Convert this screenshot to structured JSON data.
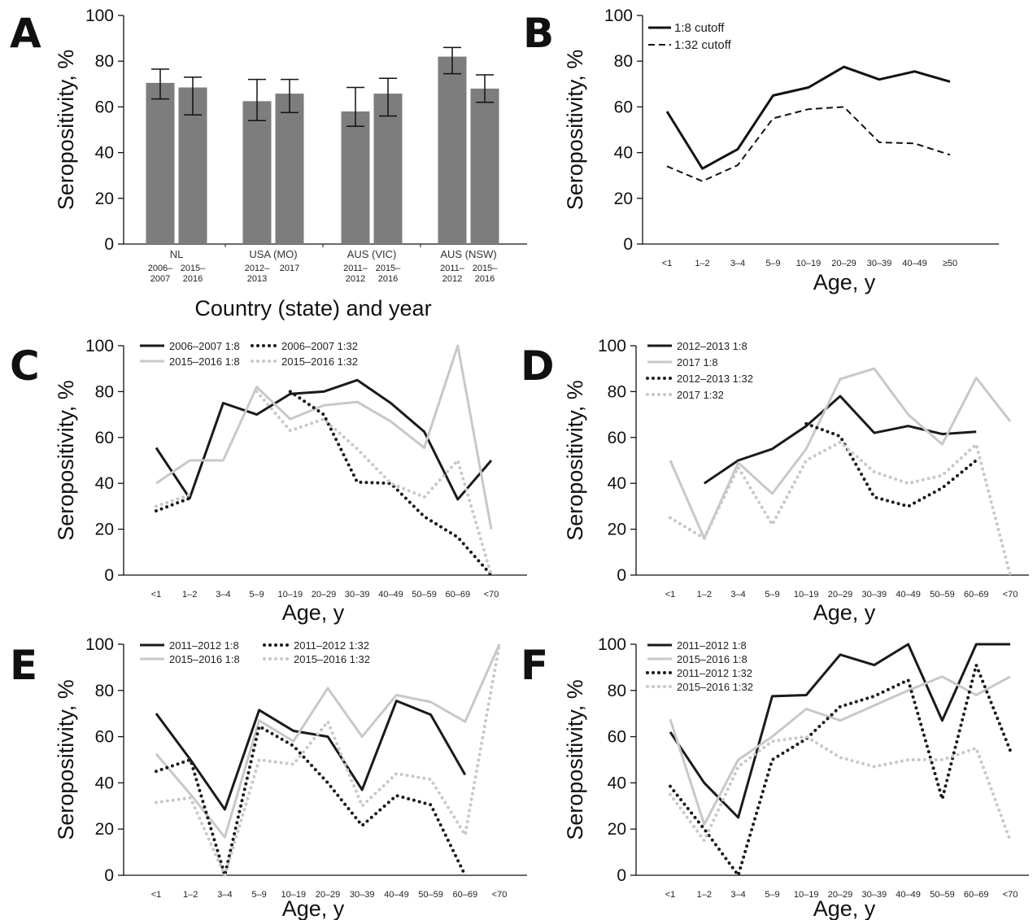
{
  "figure": {
    "panel_letters": [
      "A",
      "B",
      "C",
      "D",
      "E",
      "F"
    ]
  },
  "chart_data": [
    {
      "panel": "A",
      "type": "bar",
      "ylabel": "Seropositivity, %",
      "xlabel": "Country (state) and year",
      "ylim": [
        0,
        100
      ],
      "yticks": [
        "0",
        "20",
        "40",
        "60",
        "80",
        "100"
      ],
      "bar_color": "#7d7d7d",
      "groups": [
        {
          "label": "NL",
          "years": [
            "2006–\n2007",
            "2015–\n2016"
          ],
          "values": [
            70.5,
            68.5
          ],
          "err_low": [
            63.5,
            56.5
          ],
          "err_high": [
            76.5,
            73
          ]
        },
        {
          "label": "USA (MO)",
          "years": [
            "2012–\n2013",
            "2017"
          ],
          "values": [
            62.5,
            65.8
          ],
          "err_low": [
            54,
            57.5
          ],
          "err_high": [
            72,
            72
          ]
        },
        {
          "label": "AUS (VIC)",
          "years": [
            "2011–\n2012",
            "2015–\n2016"
          ],
          "values": [
            58,
            65.8
          ],
          "err_low": [
            51.5,
            56
          ],
          "err_high": [
            68.5,
            72.5
          ]
        },
        {
          "label": "AUS (NSW)",
          "years": [
            "2011–\n2012",
            "2015–\n2016"
          ],
          "values": [
            82,
            68
          ],
          "err_low": [
            74.5,
            62
          ],
          "err_high": [
            86,
            74
          ]
        }
      ]
    },
    {
      "panel": "B",
      "type": "line",
      "ylabel": "Seropositivity, %",
      "xlabel": "Age, y",
      "ylim": [
        0,
        100
      ],
      "yticks": [
        "0",
        "20",
        "40",
        "60",
        "80",
        "100"
      ],
      "categories": [
        "<1",
        "1–2",
        "3–4",
        "5–9",
        "10–19",
        "20–29",
        "30–39",
        "40–49",
        "≥50"
      ],
      "series": [
        {
          "name": "1:8 cutoff",
          "color": "#111111",
          "dash": "solid",
          "values": [
            58,
            33,
            41.5,
            65,
            68.5,
            77.5,
            72,
            75.5,
            71
          ]
        },
        {
          "name": "1:32 cutoff",
          "color": "#111111",
          "dash": "dashed",
          "values": [
            34,
            27.5,
            34.5,
            55,
            59,
            60,
            44.5,
            44,
            39
          ]
        }
      ]
    },
    {
      "panel": "C",
      "type": "line",
      "ylabel": "Seropositivity, %",
      "xlabel": "Age, y",
      "ylim": [
        0,
        100
      ],
      "yticks": [
        "0",
        "20",
        "40",
        "60",
        "80",
        "100"
      ],
      "categories": [
        "<1",
        "1–2",
        "3–4",
        "5–9",
        "10–19",
        "20–29",
        "30–39",
        "40–49",
        "50–59",
        "60–69",
        "<70"
      ],
      "series": [
        {
          "name": "2006–2007 1:8",
          "color": "#1a1a1a",
          "dash": "solid",
          "values": [
            55.5,
            33.5,
            75,
            70,
            79,
            80,
            85,
            75,
            62.5,
            33,
            50
          ]
        },
        {
          "name": "2015–2016 1:8",
          "color": "#c8c8c8",
          "dash": "solid",
          "values": [
            40,
            50,
            50,
            82,
            68,
            74,
            75.5,
            67,
            55.5,
            100,
            20
          ]
        },
        {
          "name": "2006–2007 1:32",
          "color": "#1a1a1a",
          "dash": "dotted",
          "values": [
            28,
            33.5,
            null,
            null,
            80,
            70,
            40.5,
            40,
            25.5,
            16.5,
            0
          ]
        },
        {
          "name": "2015–2016 1:32",
          "color": "#c8c8c8",
          "dash": "dotted",
          "values": [
            30,
            35,
            null,
            80,
            63,
            68,
            55,
            40,
            34,
            50,
            0
          ]
        }
      ]
    },
    {
      "panel": "D",
      "type": "line",
      "ylabel": "Seropositivity, %",
      "xlabel": "Age, y",
      "ylim": [
        0,
        100
      ],
      "yticks": [
        "0",
        "20",
        "40",
        "60",
        "80",
        "100"
      ],
      "categories": [
        "<1",
        "1–2",
        "3–4",
        "5–9",
        "10–19",
        "20–29",
        "30–39",
        "40–49",
        "50–59",
        "60–69",
        "<70"
      ],
      "series": [
        {
          "name": "2012–2013 1:8",
          "color": "#1a1a1a",
          "dash": "solid",
          "values": [
            null,
            40,
            50,
            55,
            65,
            78,
            62,
            65,
            61.5,
            62.5,
            null
          ]
        },
        {
          "name": "2017 1:8",
          "color": "#c8c8c8",
          "dash": "solid",
          "values": [
            50,
            16,
            49,
            35.5,
            55,
            85.5,
            90,
            70,
            57,
            86,
            67
          ]
        },
        {
          "name": "2012–2013 1:32",
          "color": "#1a1a1a",
          "dash": "dotted",
          "values": [
            null,
            null,
            null,
            null,
            66,
            60.5,
            34,
            30,
            38,
            50,
            null
          ]
        },
        {
          "name": "2017 1:32",
          "color": "#c8c8c8",
          "dash": "dotted",
          "values": [
            25,
            16,
            47,
            22,
            50,
            58,
            45,
            40,
            43.5,
            57,
            0
          ]
        }
      ]
    },
    {
      "panel": "E",
      "type": "line",
      "ylabel": "Seropositivity, %",
      "xlabel": "Age, y",
      "ylim": [
        0,
        100
      ],
      "yticks": [
        "0",
        "20",
        "40",
        "60",
        "80",
        "100"
      ],
      "categories": [
        "<1",
        "1–2",
        "3–4",
        "5–9",
        "10–19",
        "20–29",
        "30–39",
        "40–49",
        "50–59",
        "60–69",
        "<70"
      ],
      "series": [
        {
          "name": "2011–2012 1:8",
          "color": "#1a1a1a",
          "dash": "solid",
          "values": [
            70,
            50,
            28.5,
            71.5,
            62.5,
            60,
            37,
            75.5,
            69.5,
            43.5,
            null
          ]
        },
        {
          "name": "2015–2016 1:8",
          "color": "#c8c8c8",
          "dash": "solid",
          "values": [
            52.5,
            35,
            16.5,
            67,
            58,
            81,
            60,
            78,
            75,
            66.5,
            100
          ]
        },
        {
          "name": "2011–2012 1:32",
          "color": "#1a1a1a",
          "dash": "dotted",
          "values": [
            45,
            50,
            0,
            64.5,
            56,
            40,
            21.5,
            34.5,
            30.5,
            0,
            null
          ]
        },
        {
          "name": "2015–2016 1:32",
          "color": "#c8c8c8",
          "dash": "dotted",
          "values": [
            31.5,
            33.5,
            0,
            50,
            48,
            66.5,
            30,
            44,
            41.5,
            17.5,
            100
          ]
        }
      ]
    },
    {
      "panel": "F",
      "type": "line",
      "ylabel": "Seropositivity, %",
      "xlabel": "Age, y",
      "ylim": [
        0,
        100
      ],
      "yticks": [
        "0",
        "20",
        "40",
        "60",
        "80",
        "100"
      ],
      "categories": [
        "<1",
        "1–2",
        "3–4",
        "5–9",
        "10–19",
        "20–29",
        "30–39",
        "40–49",
        "50–59",
        "60–69",
        "<70"
      ],
      "series": [
        {
          "name": "2011–2012 1:8",
          "color": "#1a1a1a",
          "dash": "solid",
          "values": [
            62,
            40,
            25,
            77.5,
            78,
            95.5,
            91,
            100,
            67,
            100,
            100
          ]
        },
        {
          "name": "2015–2016 1:8",
          "color": "#c8c8c8",
          "dash": "solid",
          "values": [
            67.5,
            22,
            50,
            60,
            72,
            67,
            73.5,
            80,
            86,
            78,
            86
          ]
        },
        {
          "name": "2011–2012 1:32",
          "color": "#1a1a1a",
          "dash": "dotted",
          "values": [
            38.5,
            20,
            0,
            50,
            59,
            73,
            77.5,
            84.5,
            33,
            91,
            54
          ]
        },
        {
          "name": "2015–2016 1:32",
          "color": "#c8c8c8",
          "dash": "dotted",
          "values": [
            35,
            15,
            47,
            58,
            60,
            51,
            47,
            50,
            50,
            55,
            15
          ]
        }
      ]
    }
  ]
}
